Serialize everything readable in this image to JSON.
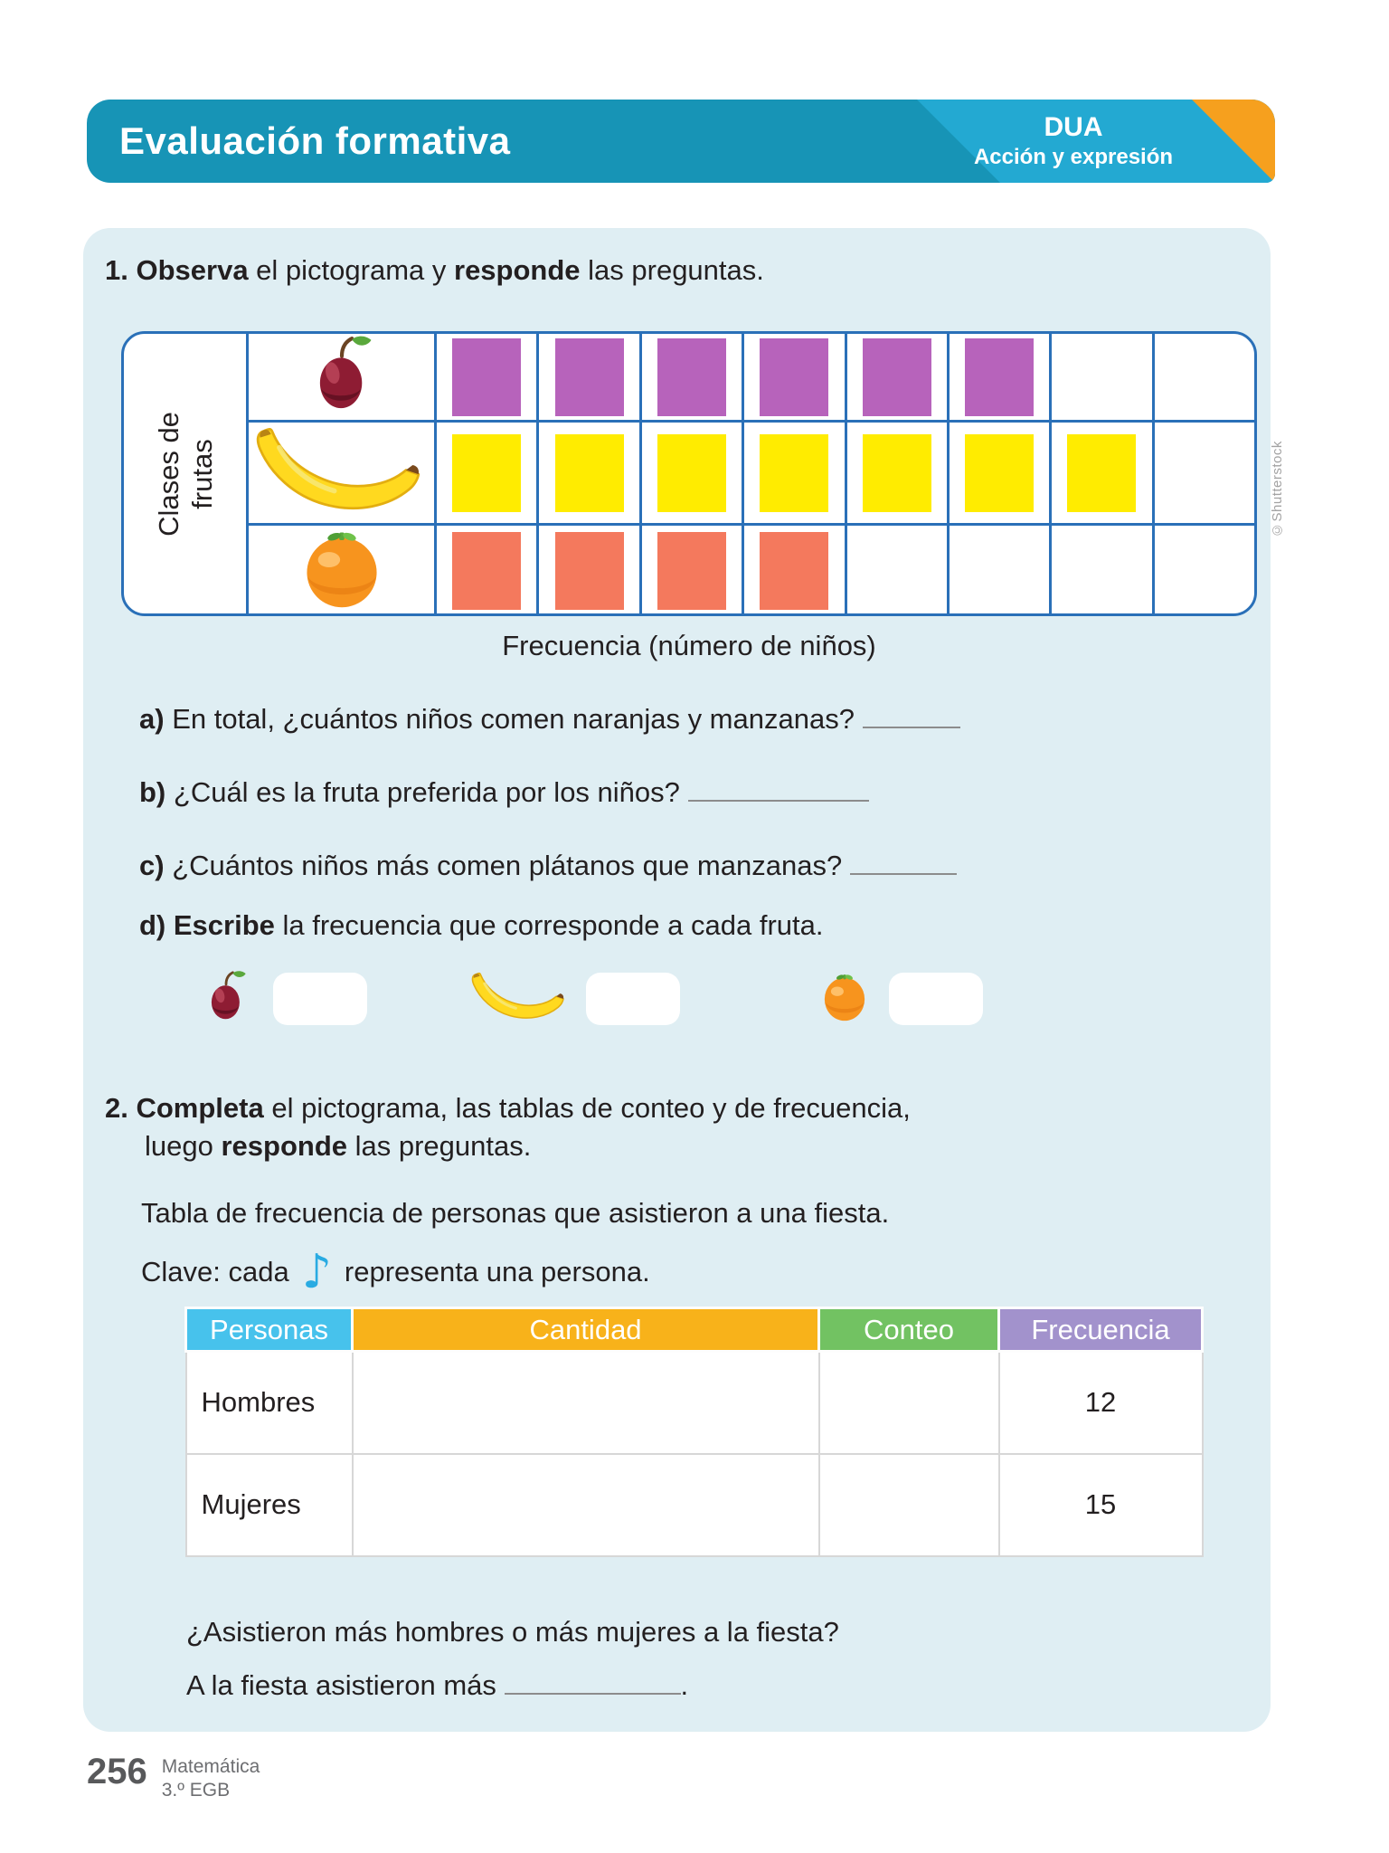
{
  "page": {
    "header": {
      "title": "Evaluación formativa",
      "badge_title": "DUA",
      "badge_subtitle": "Acción y expresión"
    },
    "credit": "©Shutterstock",
    "footer": {
      "page_number": "256",
      "subject": "Matemática",
      "grade": "3.º EGB"
    }
  },
  "exercise1": {
    "number": "1.",
    "bold1": "Observa",
    "text1": " el pictograma y ",
    "bold2": "responde",
    "text2": " las preguntas.",
    "pictogram": {
      "y_label_line1": "Clases de",
      "y_label_line2": "frutas",
      "x_label": "Frecuencia (número de niños)"
    },
    "questions": {
      "a_label": "a)",
      "a_text": " En total, ¿cuántos niños comen naranjas y manzanas? ",
      "b_label": "b)",
      "b_text": " ¿Cuál es la fruta preferida por los niños? ",
      "c_label": "c)",
      "c_text": " ¿Cuántos niños más comen plátanos que manzanas? ",
      "d_label": "d)",
      "d_bold": " Escribe",
      "d_text": " la frecuencia que corresponde a cada fruta."
    }
  },
  "exercise2": {
    "number": "2.",
    "bold1": "Completa",
    "text1": " el pictograma, las tablas de conteo y de frecuencia,",
    "line2_pre": "luego ",
    "bold2": "responde",
    "line2_post": " las preguntas.",
    "subtitle": "Tabla de frecuencia de personas que asistieron a una fiesta.",
    "key_pre": "Clave: cada",
    "note_glyph": "♪",
    "key_post": "representa una persona.",
    "question": "¿Asistieron más hombres o más mujeres a la fiesta?",
    "answer_pre": "A la fiesta asistieron más ",
    "answer_period": "."
  },
  "chart_data": [
    {
      "type": "pictogram",
      "categories": [
        "manzana",
        "plátano",
        "naranja"
      ],
      "values": [
        6,
        7,
        4
      ],
      "max_cells": 8,
      "colors": [
        "#b763bb",
        "#ffec00",
        "#f4795d"
      ],
      "ylabel": "Clases de frutas",
      "xlabel": "Frecuencia (número de niños)"
    },
    {
      "type": "table",
      "columns": [
        "Personas",
        "Cantidad",
        "Conteo",
        "Frecuencia"
      ],
      "rows": [
        [
          "Hombres",
          "",
          "",
          "12"
        ],
        [
          "Mujeres",
          "",
          "",
          "15"
        ]
      ]
    }
  ],
  "colors": {
    "header_teal": "#1794b6",
    "header_light": "#23a9d2",
    "header_orange": "#f6a01e",
    "panel_bg": "#dfeef3",
    "grid_blue": "#2a70b8",
    "square_purple": "#b763bb",
    "square_yellow": "#ffec00",
    "square_salmon": "#f4795d",
    "table_personas": "#47c2ec",
    "table_cantidad": "#f8b21a",
    "table_conteo": "#72c262",
    "table_frecuencia": "#a292cc",
    "note_cyan": "#29abe2"
  }
}
